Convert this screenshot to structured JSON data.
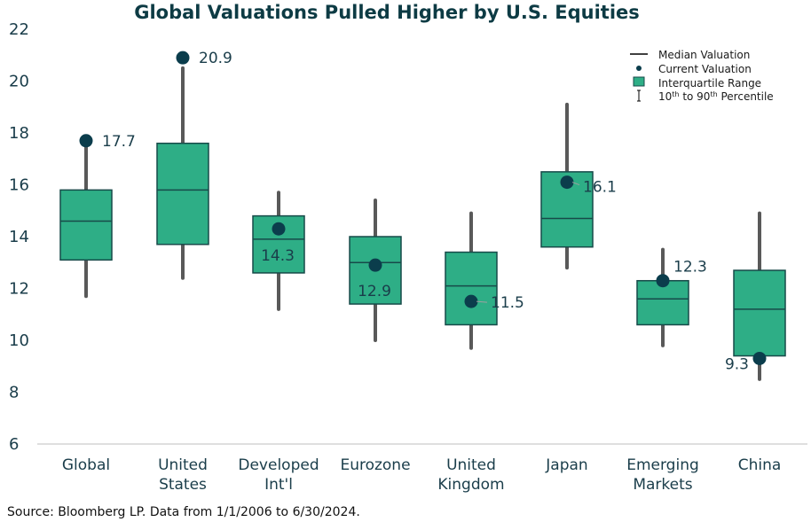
{
  "chart_data": {
    "type": "box",
    "title": "Global Valuations Pulled Higher by U.S. Equities",
    "xlabel": "",
    "ylabel": "",
    "ylim": [
      6,
      22
    ],
    "yticks": [
      "6",
      "8",
      "10",
      "12",
      "14",
      "16",
      "18",
      "20",
      "22"
    ],
    "grid": false,
    "legend_position": "top-right",
    "categories": [
      [
        "Global"
      ],
      [
        "United",
        "States"
      ],
      [
        "Developed",
        "Int'l"
      ],
      [
        "Eurozone"
      ],
      [
        "United",
        "Kingdom"
      ],
      [
        "Japan"
      ],
      [
        "Emerging",
        "Markets"
      ],
      [
        "China"
      ]
    ],
    "series": [
      {
        "name": "Median Valuation",
        "values": [
          14.6,
          15.8,
          13.9,
          13.0,
          12.1,
          14.7,
          11.6,
          11.2
        ]
      },
      {
        "name": "Current Valuation",
        "values": [
          17.7,
          20.9,
          14.3,
          12.9,
          11.5,
          16.1,
          12.3,
          9.3
        ]
      },
      {
        "name": "Interquartile Range (25th)",
        "values": [
          13.1,
          13.7,
          12.6,
          11.4,
          10.6,
          13.6,
          10.6,
          9.4
        ]
      },
      {
        "name": "Interquartile Range (75th)",
        "values": [
          15.8,
          17.6,
          14.8,
          14.0,
          13.4,
          16.5,
          12.3,
          12.7
        ]
      },
      {
        "name": "10th Percentile",
        "values": [
          11.7,
          12.4,
          11.2,
          10.0,
          9.7,
          12.8,
          9.8,
          8.5
        ]
      },
      {
        "name": "90th Percentile",
        "values": [
          17.8,
          20.5,
          15.7,
          15.4,
          14.9,
          19.1,
          13.5,
          14.9
        ]
      }
    ],
    "current_labels": [
      "17.7",
      "20.9",
      "14.3",
      "12.9",
      "11.5",
      "16.1",
      "12.3",
      "9.3"
    ],
    "legend": {
      "median": "Median Valuation",
      "current": "Current Valuation",
      "iqr": "Interquartile Range",
      "range_prefix": "10",
      "range_sup1": "th",
      "range_mid": " to 90",
      "range_sup2": "th",
      "range_suffix": " Percentile"
    },
    "colors": {
      "box_fill": "#2eae86",
      "box_stroke": "#174a49",
      "whisker": "#595959",
      "dot": "#0b3d4c",
      "text": "#1a3d4a",
      "title": "#0d3b44"
    },
    "source": "Source: Bloomberg LP. Data from 1/1/2006 to 6/30/2024."
  }
}
